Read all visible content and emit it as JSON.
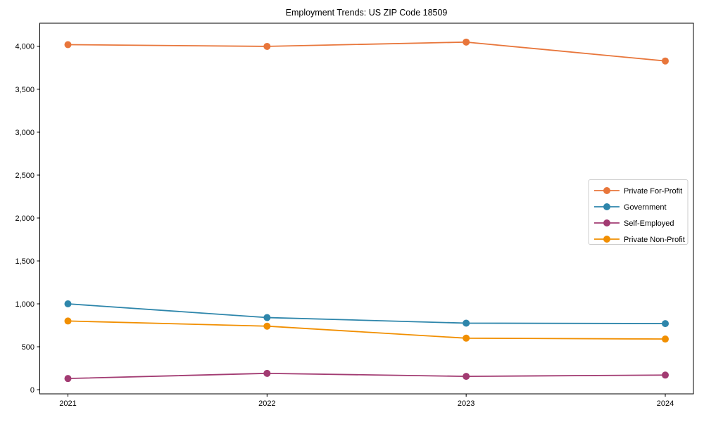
{
  "figure": {
    "title": "Employment Trends: US ZIP Code 18509"
  },
  "chart_data": {
    "type": "line",
    "title": "Employment Trends: US ZIP Code 18509",
    "xlabel": "",
    "ylabel": "",
    "categories": [
      "2021",
      "2022",
      "2023",
      "2024"
    ],
    "series": [
      {
        "name": "Private For-Profit",
        "color": "#e8763b",
        "values": [
          4020,
          4000,
          4050,
          3830
        ]
      },
      {
        "name": "Government",
        "color": "#2e86ab",
        "values": [
          1000,
          840,
          775,
          770
        ]
      },
      {
        "name": "Self-Employed",
        "color": "#a23b72",
        "values": [
          130,
          190,
          155,
          170
        ]
      },
      {
        "name": "Private Non-Profit",
        "color": "#f18f01",
        "values": [
          800,
          740,
          600,
          590
        ]
      }
    ],
    "ylim": [
      -49,
      4270
    ],
    "yticks": [
      0,
      500,
      1000,
      1500,
      2000,
      2500,
      3000,
      3500,
      4000
    ],
    "ytick_labels": [
      "0",
      "500",
      "1,000",
      "1,500",
      "2,000",
      "2,500",
      "3,000",
      "3,500",
      "4,000"
    ],
    "grid": false,
    "legend_position": "center right",
    "marker": "circle",
    "axis_color": "#000000",
    "legend_border_color": "#cccccc"
  }
}
